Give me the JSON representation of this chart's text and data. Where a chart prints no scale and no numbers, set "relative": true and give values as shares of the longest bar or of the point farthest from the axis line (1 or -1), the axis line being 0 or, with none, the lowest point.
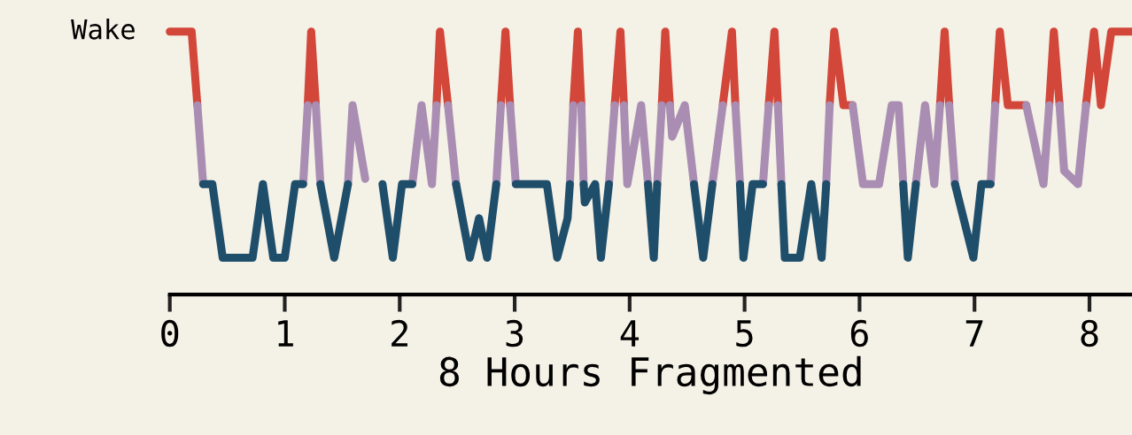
{
  "chart_data": {
    "type": "line",
    "relative": true,
    "xlabel": "8 Hours Fragmented",
    "annotations": [
      "Wake"
    ],
    "xlim": [
      0,
      8.37
    ],
    "xticks": [
      0,
      1,
      2,
      3,
      4,
      5,
      6,
      7,
      8
    ],
    "grid": false,
    "legend": false,
    "marker": "none",
    "line_style": "solid",
    "tick_labels": "x",
    "series": [
      {
        "color": "#d2473a",
        "x": [
          0,
          0.19,
          0.24
        ],
        "values": [
          1,
          1,
          0.72
        ]
      },
      {
        "color": "#d2473a",
        "x": [
          1.2,
          1.23,
          1.27
        ],
        "values": [
          0.72,
          1,
          0.72
        ]
      },
      {
        "color": "#d2473a",
        "x": [
          2.32,
          2.35,
          2.42
        ],
        "values": [
          0.72,
          1,
          0.72
        ]
      },
      {
        "color": "#d2473a",
        "x": [
          2.88,
          2.92,
          2.96
        ],
        "values": [
          0.72,
          1,
          0.72
        ]
      },
      {
        "color": "#d2473a",
        "x": [
          3.51,
          3.55,
          3.58
        ],
        "values": [
          0.72,
          1,
          0.72
        ]
      },
      {
        "color": "#d2473a",
        "x": [
          3.87,
          3.92,
          3.95
        ],
        "values": [
          0.72,
          1,
          0.72
        ]
      },
      {
        "color": "#d2473a",
        "x": [
          4.28,
          4.31,
          4.35
        ],
        "values": [
          0.72,
          1,
          0.72
        ]
      },
      {
        "color": "#d2473a",
        "x": [
          4.81,
          4.89,
          4.92
        ],
        "values": [
          0.72,
          1,
          0.72
        ]
      },
      {
        "color": "#d2473a",
        "x": [
          5.21,
          5.26,
          5.29
        ],
        "values": [
          0.72,
          1,
          0.72
        ]
      },
      {
        "color": "#d2473a",
        "x": [
          5.74,
          5.78,
          5.86,
          5.94
        ],
        "values": [
          0.72,
          1,
          0.72,
          0.72
        ]
      },
      {
        "color": "#d2473a",
        "x": [
          6.7,
          6.74,
          6.78
        ],
        "values": [
          0.72,
          1,
          0.72
        ]
      },
      {
        "color": "#d2473a",
        "x": [
          7.18,
          7.22,
          7.29,
          7.45
        ],
        "values": [
          0.72,
          1,
          0.72,
          0.72
        ]
      },
      {
        "color": "#d2473a",
        "x": [
          7.65,
          7.69,
          7.74
        ],
        "values": [
          0.72,
          1,
          0.72
        ]
      },
      {
        "color": "#d2473a",
        "x": [
          7.97,
          8.04,
          8.1,
          8.19,
          8.37
        ],
        "values": [
          0.72,
          1,
          0.72,
          1,
          1
        ]
      },
      {
        "color": "#a98db3",
        "x": [
          0.24,
          0.29
        ],
        "values": [
          0.72,
          0.42
        ]
      },
      {
        "color": "#a98db3",
        "x": [
          1.16,
          1.2
        ],
        "values": [
          0.42,
          0.72
        ]
      },
      {
        "color": "#a98db3",
        "x": [
          1.27,
          1.31
        ],
        "values": [
          0.72,
          0.42
        ]
      },
      {
        "color": "#a98db3",
        "x": [
          1.55,
          1.59,
          1.7
        ],
        "values": [
          0.42,
          0.72,
          0.44
        ]
      },
      {
        "color": "#a98db3",
        "x": [
          2.11,
          2.19,
          2.28,
          2.32
        ],
        "values": [
          0.42,
          0.72,
          0.42,
          0.72
        ]
      },
      {
        "color": "#a98db3",
        "x": [
          2.42,
          2.49
        ],
        "values": [
          0.72,
          0.42
        ]
      },
      {
        "color": "#a98db3",
        "x": [
          2.84,
          2.88
        ],
        "values": [
          0.42,
          0.72
        ]
      },
      {
        "color": "#a98db3",
        "x": [
          2.96,
          3.01
        ],
        "values": [
          0.72,
          0.42
        ]
      },
      {
        "color": "#a98db3",
        "x": [
          3.48,
          3.51
        ],
        "values": [
          0.42,
          0.72
        ]
      },
      {
        "color": "#a98db3",
        "x": [
          3.58,
          3.6
        ],
        "values": [
          0.72,
          0.42
        ]
      },
      {
        "color": "#a98db3",
        "x": [
          3.82,
          3.87
        ],
        "values": [
          0.42,
          0.72
        ]
      },
      {
        "color": "#a98db3",
        "x": [
          3.95,
          3.98,
          4.1,
          4.16
        ],
        "values": [
          0.72,
          0.42,
          0.72,
          0.42
        ]
      },
      {
        "color": "#a98db3",
        "x": [
          4.24,
          4.28
        ],
        "values": [
          0.42,
          0.72
        ]
      },
      {
        "color": "#a98db3",
        "x": [
          4.35,
          4.37,
          4.48,
          4.56
        ],
        "values": [
          0.72,
          0.6,
          0.72,
          0.42
        ]
      },
      {
        "color": "#a98db3",
        "x": [
          4.72,
          4.81
        ],
        "values": [
          0.42,
          0.72
        ]
      },
      {
        "color": "#a98db3",
        "x": [
          4.92,
          4.96
        ],
        "values": [
          0.72,
          0.42
        ]
      },
      {
        "color": "#a98db3",
        "x": [
          5.16,
          5.21
        ],
        "values": [
          0.42,
          0.72
        ]
      },
      {
        "color": "#a98db3",
        "x": [
          5.29,
          5.32
        ],
        "values": [
          0.72,
          0.42
        ]
      },
      {
        "color": "#a98db3",
        "x": [
          5.71,
          5.74
        ],
        "values": [
          0.42,
          0.72
        ]
      },
      {
        "color": "#a98db3",
        "x": [
          5.94,
          6.03,
          6.17,
          6.28,
          6.34,
          6.38
        ],
        "values": [
          0.72,
          0.42,
          0.42,
          0.72,
          0.72,
          0.42
        ]
      },
      {
        "color": "#a98db3",
        "x": [
          6.49,
          6.57,
          6.65,
          6.7
        ],
        "values": [
          0.42,
          0.72,
          0.42,
          0.72
        ]
      },
      {
        "color": "#a98db3",
        "x": [
          6.78,
          6.83
        ],
        "values": [
          0.72,
          0.42
        ]
      },
      {
        "color": "#a98db3",
        "x": [
          7.14,
          7.18
        ],
        "values": [
          0.42,
          0.72
        ]
      },
      {
        "color": "#a98db3",
        "x": [
          7.45,
          7.6,
          7.65
        ],
        "values": [
          0.72,
          0.42,
          0.72
        ]
      },
      {
        "color": "#a98db3",
        "x": [
          7.74,
          7.78,
          7.9,
          7.97
        ],
        "values": [
          0.72,
          0.47,
          0.42,
          0.72
        ]
      },
      {
        "color": "#1f4e6b",
        "x": [
          0.29,
          0.37,
          0.46,
          0.72,
          0.81,
          0.9,
          1.0,
          1.09,
          1.16
        ],
        "values": [
          0.42,
          0.42,
          0.14,
          0.14,
          0.42,
          0.14,
          0.14,
          0.42,
          0.42
        ]
      },
      {
        "color": "#1f4e6b",
        "x": [
          1.31,
          1.43,
          1.55
        ],
        "values": [
          0.42,
          0.14,
          0.42
        ]
      },
      {
        "color": "#1f4e6b",
        "x": [
          1.85,
          1.94,
          2.02,
          2.11
        ],
        "values": [
          0.42,
          0.14,
          0.42,
          0.42
        ]
      },
      {
        "color": "#1f4e6b",
        "x": [
          2.49,
          2.61,
          2.69,
          2.76,
          2.84
        ],
        "values": [
          0.42,
          0.14,
          0.29,
          0.14,
          0.42
        ]
      },
      {
        "color": "#1f4e6b",
        "x": [
          3.01,
          3.28,
          3.37,
          3.46,
          3.48
        ],
        "values": [
          0.42,
          0.42,
          0.14,
          0.29,
          0.42
        ]
      },
      {
        "color": "#1f4e6b",
        "x": [
          3.6,
          3.61,
          3.7,
          3.75,
          3.82
        ],
        "values": [
          0.42,
          0.35,
          0.42,
          0.14,
          0.42
        ]
      },
      {
        "color": "#1f4e6b",
        "x": [
          4.16,
          4.21,
          4.24
        ],
        "values": [
          0.42,
          0.14,
          0.42
        ]
      },
      {
        "color": "#1f4e6b",
        "x": [
          4.56,
          4.64,
          4.72
        ],
        "values": [
          0.42,
          0.14,
          0.42
        ]
      },
      {
        "color": "#1f4e6b",
        "x": [
          4.96,
          4.99,
          5.07,
          5.16
        ],
        "values": [
          0.42,
          0.14,
          0.42,
          0.42
        ]
      },
      {
        "color": "#1f4e6b",
        "x": [
          5.32,
          5.35,
          5.48,
          5.58,
          5.67,
          5.71
        ],
        "values": [
          0.42,
          0.14,
          0.14,
          0.42,
          0.14,
          0.42
        ]
      },
      {
        "color": "#1f4e6b",
        "x": [
          6.38,
          6.42,
          6.49
        ],
        "values": [
          0.42,
          0.14,
          0.42
        ]
      },
      {
        "color": "#1f4e6b",
        "x": [
          6.83,
          6.99,
          7.06,
          7.14
        ],
        "values": [
          0.42,
          0.14,
          0.42,
          0.42
        ]
      }
    ]
  }
}
